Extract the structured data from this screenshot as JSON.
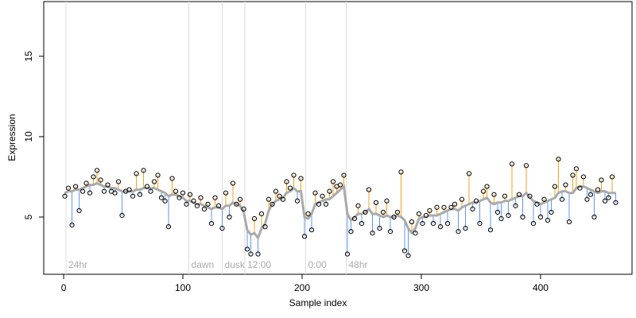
{
  "chart_data": {
    "type": "scatter",
    "x_label": "Sample index",
    "y_label": "Expression",
    "xlim": [
      -16.7,
      476.7
    ],
    "ylim": [
      1.44,
      18.4
    ],
    "xticks": [
      0,
      100,
      200,
      300,
      400
    ],
    "yticks": [
      5,
      10,
      15
    ],
    "point_color": "#000000",
    "smooth_color": "#aaaaaa",
    "above_color": "#f0a020",
    "below_color": "#6495ed",
    "marker_color": "#dddddd",
    "marker_label_color": "#aaaaaa",
    "markers": [
      {
        "x": 2,
        "label": "24hr"
      },
      {
        "x": 105,
        "label": "dawn"
      },
      {
        "x": 133,
        "label": "dusk"
      },
      {
        "x": 152,
        "label": "12:00"
      },
      {
        "x": 203,
        "label": "0:00"
      },
      {
        "x": 237,
        "label": "48hr"
      }
    ],
    "x": [
      1,
      4,
      7,
      10,
      13,
      16,
      19,
      22,
      25,
      28,
      31,
      34,
      37,
      40,
      43,
      46,
      49,
      52,
      55,
      58,
      61,
      64,
      67,
      70,
      73,
      76,
      79,
      82,
      85,
      88,
      91,
      94,
      97,
      100,
      103,
      106,
      109,
      112,
      115,
      118,
      121,
      124,
      127,
      130,
      133,
      136,
      139,
      142,
      145,
      148,
      151,
      154,
      157,
      160,
      163,
      166,
      169,
      172,
      175,
      178,
      181,
      184,
      187,
      190,
      193,
      196,
      199,
      202,
      205,
      208,
      211,
      214,
      217,
      220,
      223,
      226,
      229,
      232,
      235,
      238,
      241,
      244,
      247,
      250,
      253,
      256,
      259,
      262,
      265,
      268,
      271,
      274,
      277,
      280,
      283,
      286,
      289,
      292,
      295,
      298,
      301,
      304,
      307,
      310,
      313,
      316,
      319,
      322,
      325,
      328,
      331,
      334,
      337,
      340,
      343,
      346,
      349,
      352,
      355,
      358,
      361,
      364,
      367,
      370,
      373,
      376,
      379,
      382,
      385,
      388,
      391,
      394,
      397,
      400,
      403,
      406,
      409,
      412,
      415,
      418,
      421,
      424,
      427,
      430,
      433,
      436,
      439,
      442,
      445,
      448,
      451,
      454,
      457,
      460,
      463
    ],
    "values": [
      6.3,
      6.8,
      4.5,
      6.9,
      5.4,
      6.6,
      7.1,
      6.5,
      7.5,
      7.9,
      7.3,
      6.6,
      7.0,
      6.6,
      6.5,
      7.2,
      5.1,
      6.6,
      6.7,
      6.3,
      7.7,
      6.4,
      7.9,
      6.9,
      6.6,
      7.2,
      7.6,
      6.2,
      6.0,
      4.4,
      7.4,
      6.6,
      6.2,
      6.5,
      5.8,
      6.4,
      6.0,
      5.7,
      6.2,
      5.5,
      5.8,
      4.6,
      6.2,
      5.7,
      4.3,
      6.5,
      5.0,
      7.1,
      5.8,
      6.1,
      5.5,
      3.0,
      2.7,
      4.9,
      2.7,
      5.2,
      4.4,
      6.1,
      5.8,
      6.6,
      6.3,
      6.1,
      7.2,
      6.8,
      7.6,
      6.0,
      7.4,
      3.8,
      5.2,
      4.2,
      6.5,
      5.8,
      6.3,
      5.8,
      6.6,
      7.2,
      6.9,
      7.0,
      7.6,
      2.7,
      4.1,
      4.9,
      5.7,
      4.6,
      5.3,
      6.7,
      4.0,
      5.9,
      4.3,
      5.3,
      6.0,
      4.1,
      5.0,
      5.3,
      7.8,
      2.9,
      2.6,
      4.7,
      4.0,
      5.2,
      4.6,
      5.1,
      5.4,
      4.6,
      5.6,
      4.4,
      5.6,
      4.6,
      5.6,
      5.8,
      4.1,
      6.1,
      4.3,
      7.7,
      5.5,
      6.0,
      4.6,
      6.6,
      6.9,
      4.2,
      6.4,
      5.3,
      4.9,
      6.3,
      5.1,
      8.3,
      5.7,
      6.4,
      5.0,
      8.2,
      6.3,
      4.6,
      5.8,
      5.0,
      6.1,
      4.8,
      5.3,
      6.9,
      8.6,
      6.1,
      7.0,
      4.7,
      7.6,
      8.0,
      6.8,
      7.5,
      6.1,
      6.4,
      5.0,
      6.7,
      7.3,
      6.0,
      6.2,
      7.5,
      5.9
    ],
    "smooth": [
      6.5,
      6.6,
      6.6,
      6.7,
      6.7,
      6.8,
      6.9,
      7.0,
      7.0,
      7.1,
      7.0,
      6.9,
      6.9,
      6.8,
      6.8,
      6.7,
      6.6,
      6.6,
      6.6,
      6.6,
      6.7,
      6.7,
      6.8,
      6.8,
      6.8,
      6.8,
      6.7,
      6.6,
      6.5,
      6.3,
      6.4,
      6.4,
      6.3,
      6.2,
      6.0,
      6.0,
      5.9,
      5.8,
      5.8,
      5.7,
      5.6,
      5.5,
      5.6,
      5.6,
      5.5,
      5.7,
      5.7,
      5.9,
      5.8,
      5.7,
      5.3,
      4.2,
      3.9,
      4.0,
      3.7,
      4.3,
      4.6,
      5.4,
      5.8,
      6.0,
      6.1,
      6.2,
      6.5,
      6.6,
      6.8,
      6.6,
      6.6,
      5.0,
      4.9,
      5.2,
      5.8,
      5.9,
      6.0,
      6.1,
      6.1,
      6.3,
      6.5,
      6.7,
      6.9,
      5.2,
      4.8,
      5.0,
      5.2,
      5.2,
      5.3,
      5.5,
      5.2,
      5.2,
      5.1,
      5.0,
      5.1,
      5.0,
      5.0,
      5.1,
      5.0,
      4.8,
      4.3,
      4.0,
      4.3,
      4.9,
      5.0,
      5.0,
      5.1,
      5.1,
      5.1,
      5.2,
      5.3,
      5.4,
      5.5,
      5.5,
      5.4,
      5.6,
      5.7,
      5.8,
      5.9,
      5.9,
      6.0,
      6.1,
      6.2,
      5.9,
      5.8,
      5.9,
      5.9,
      6.0,
      6.0,
      6.1,
      6.2,
      6.3,
      6.3,
      6.5,
      6.2,
      6.0,
      5.9,
      5.8,
      5.9,
      6.0,
      6.1,
      6.2,
      6.5,
      6.6,
      6.6,
      6.5,
      6.5,
      6.8,
      6.9,
      6.9,
      6.8,
      6.7,
      6.6,
      6.5,
      6.6,
      6.6,
      6.5,
      6.5,
      6.5
    ]
  }
}
